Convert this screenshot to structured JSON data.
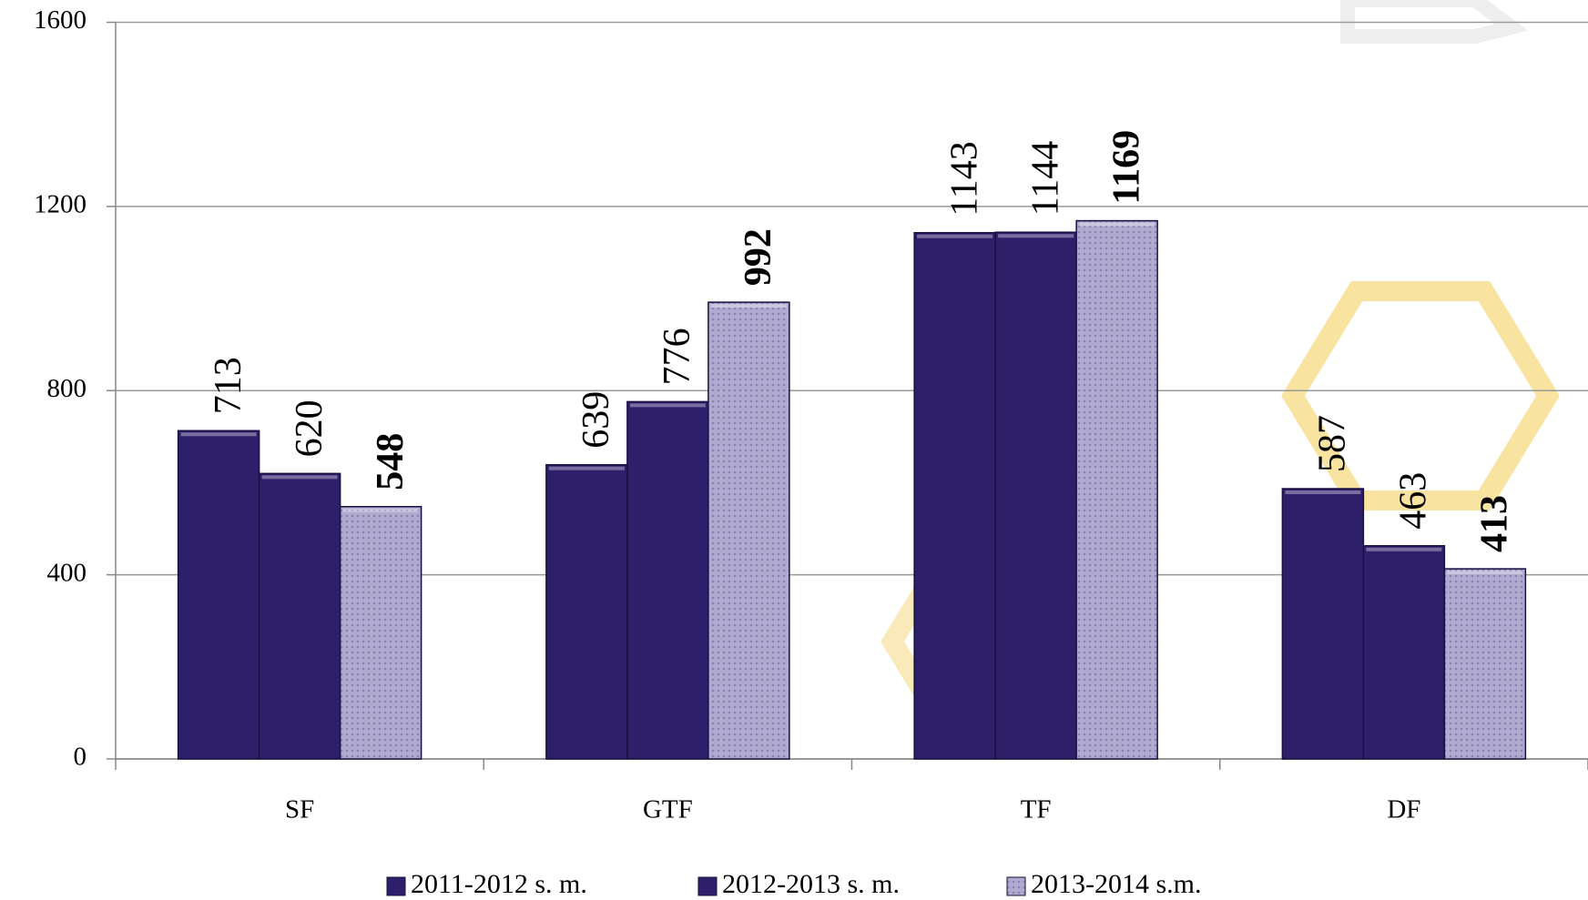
{
  "chart_data": {
    "type": "bar",
    "categories": [
      "SF",
      "GTF",
      "TF",
      "DF"
    ],
    "series": [
      {
        "name": "2011-2012 s. m.",
        "color": "#2e1f6b",
        "bold": false,
        "values": [
          713,
          639,
          1143,
          587
        ]
      },
      {
        "name": "2012-2013 s. m.",
        "color": "#2e1f6b",
        "bold": false,
        "values": [
          620,
          776,
          1144,
          463
        ]
      },
      {
        "name": "2013-2014 s.m.",
        "color": "#a49dc4",
        "bold": true,
        "values": [
          548,
          992,
          1169,
          413
        ]
      }
    ],
    "ylim": [
      0,
      1600
    ],
    "yticks": [
      0,
      400,
      800,
      1200,
      1600
    ],
    "grid": true,
    "legend": "bottom"
  }
}
